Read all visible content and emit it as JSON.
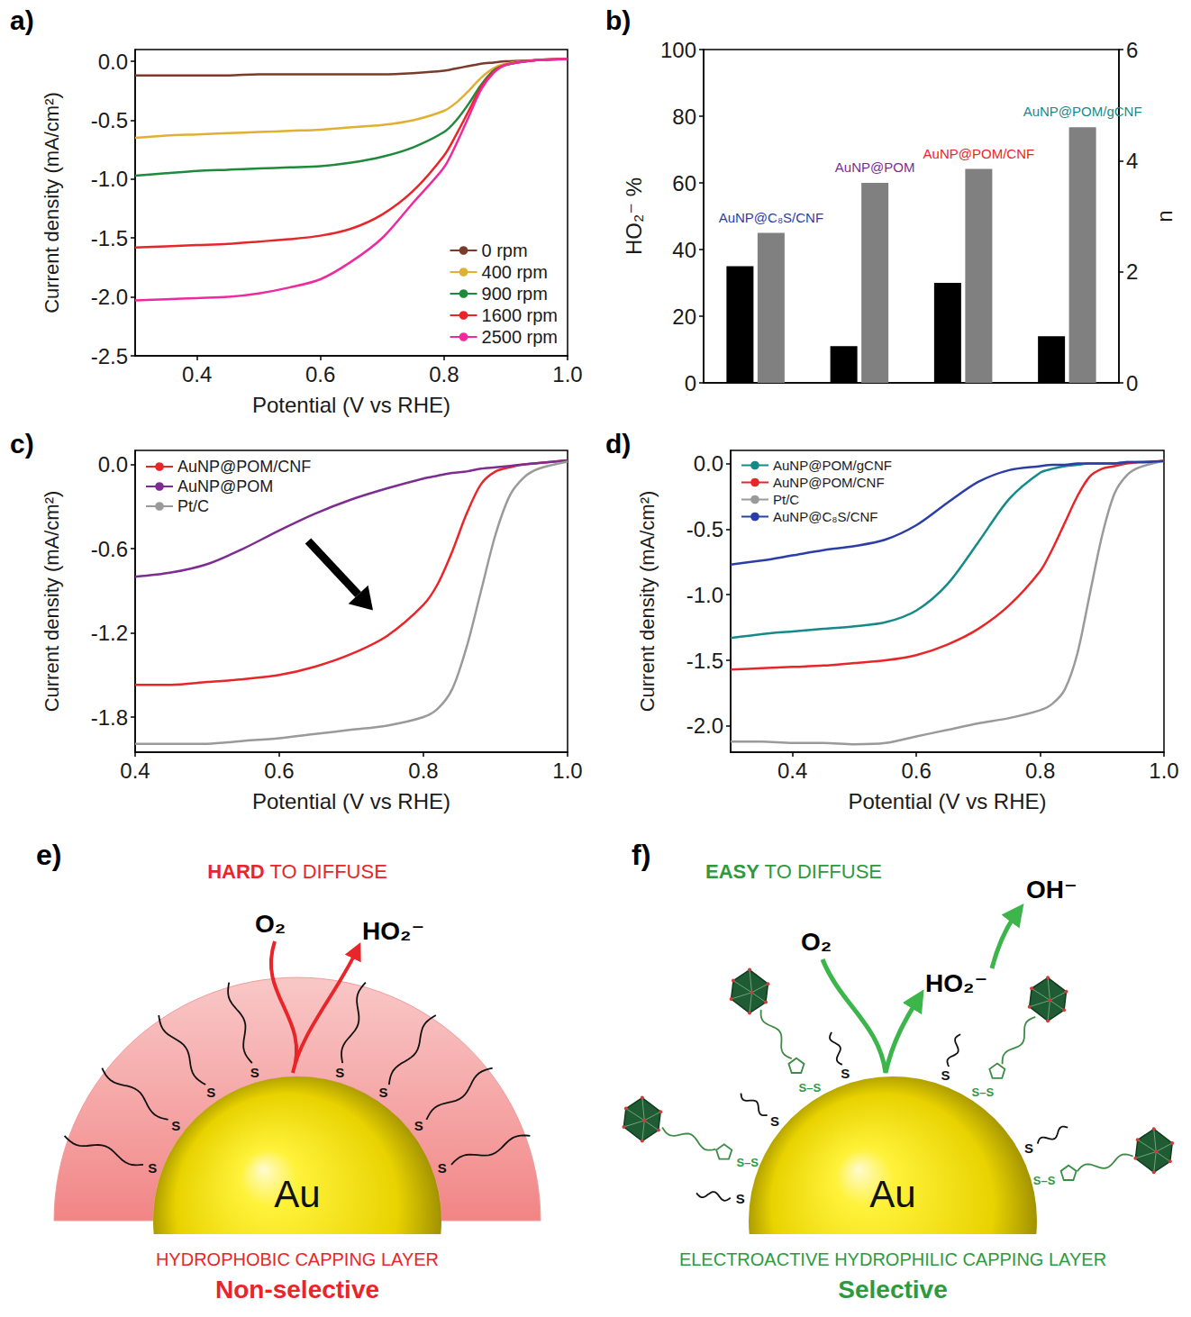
{
  "chart_data": [
    {
      "panel": "a)",
      "type": "line",
      "x_label": "Potential (V vs RHE)",
      "y_label": "Current density (mA/cm²)",
      "xlim": [
        0.3,
        1.0
      ],
      "xticks": [
        0.4,
        0.6,
        0.8,
        {
          "value": 1.0,
          "label": "1.0"
        }
      ],
      "ylim": [
        -2.5,
        0.1
      ],
      "yticks": [
        {
          "value": 0,
          "label": "0.0"
        },
        -0.5,
        {
          "value": -1,
          "label": "-1.0"
        },
        -1.5,
        {
          "value": -2,
          "label": "-2.0"
        },
        -2.5
      ],
      "grid": false,
      "legend": "bottom-right",
      "x": [
        0.3,
        0.35,
        0.4,
        0.45,
        0.5,
        0.55,
        0.6,
        0.65,
        0.7,
        0.75,
        0.8,
        0.82,
        0.84,
        0.86,
        0.88,
        0.9,
        0.95,
        1.0
      ],
      "series": [
        {
          "name": "0 rpm",
          "color": "#7b3b2a",
          "values": [
            -0.12,
            -0.12,
            -0.12,
            -0.12,
            -0.11,
            -0.11,
            -0.11,
            -0.11,
            -0.11,
            -0.1,
            -0.08,
            -0.06,
            -0.04,
            -0.02,
            -0.01,
            0,
            0.01,
            0.02
          ]
        },
        {
          "name": "400 rpm",
          "color": "#e0b030",
          "values": [
            -0.65,
            -0.63,
            -0.62,
            -0.61,
            -0.6,
            -0.59,
            -0.58,
            -0.56,
            -0.54,
            -0.5,
            -0.42,
            -0.35,
            -0.25,
            -0.14,
            -0.06,
            -0.02,
            0.01,
            0.02
          ]
        },
        {
          "name": "900 rpm",
          "color": "#1f8a3c",
          "values": [
            -0.97,
            -0.95,
            -0.93,
            -0.92,
            -0.91,
            -0.9,
            -0.89,
            -0.86,
            -0.81,
            -0.73,
            -0.6,
            -0.5,
            -0.36,
            -0.2,
            -0.08,
            -0.03,
            0.01,
            0.02
          ]
        },
        {
          "name": "1600 rpm",
          "color": "#e8262a",
          "values": [
            -1.58,
            -1.57,
            -1.56,
            -1.55,
            -1.53,
            -1.51,
            -1.48,
            -1.42,
            -1.3,
            -1.1,
            -0.8,
            -0.62,
            -0.42,
            -0.22,
            -0.09,
            -0.03,
            0.01,
            0.02
          ]
        },
        {
          "name": "2500 rpm",
          "color": "#ee2a9c",
          "values": [
            -2.03,
            -2.02,
            -2.01,
            -2.0,
            -1.97,
            -1.92,
            -1.85,
            -1.7,
            -1.5,
            -1.2,
            -0.9,
            -0.7,
            -0.47,
            -0.24,
            -0.1,
            -0.03,
            0.01,
            0.02
          ]
        }
      ]
    },
    {
      "panel": "b)",
      "type": "bar",
      "y_label": "HO₂⁻ %",
      "y2_label": "n",
      "categories": [
        "AuNP@C₈S/CNF",
        "AuNP@POM",
        "AuNP@POM/CNF",
        "AuNP@POM/gCNF"
      ],
      "colors": [
        "#2b3ea8",
        "#7d2d91",
        "#e8262a",
        "#168a8a"
      ],
      "ylim": [
        0,
        100
      ],
      "yticks": [
        0,
        20,
        40,
        60,
        80,
        100
      ],
      "y2lim": [
        0,
        6
      ],
      "y2ticks": [
        0,
        2,
        4,
        6
      ],
      "grid": false,
      "tick_labels": "y",
      "series": [
        {
          "name": "HO₂⁻ %",
          "color": "#000000",
          "values": [
            35,
            11,
            30,
            14
          ]
        },
        {
          "name": "n",
          "color": "#808080",
          "values": [
            2.7,
            3.6,
            3.85,
            4.6
          ],
          "axis": "y2"
        }
      ]
    },
    {
      "panel": "c)",
      "type": "line",
      "x_label": "Potential (V vs RHE)",
      "y_label": "Current density (mA/cm²)",
      "xlim": [
        0.4,
        1.0
      ],
      "xticks": [
        0.4,
        0.6,
        0.8,
        {
          "value": 1.0,
          "label": "1.0"
        }
      ],
      "ylim": [
        -2.05,
        0.1
      ],
      "yticks": [
        {
          "value": 0,
          "label": "0.0"
        },
        -0.6,
        -1.2,
        -1.8
      ],
      "grid": false,
      "legend": "top-left",
      "x": [
        0.4,
        0.45,
        0.5,
        0.55,
        0.6,
        0.65,
        0.7,
        0.75,
        0.8,
        0.82,
        0.84,
        0.86,
        0.88,
        0.9,
        0.92,
        0.94,
        0.96,
        1.0
      ],
      "series": [
        {
          "name": "AuNP@POM/CNF",
          "color": "#e8262a",
          "values": [
            -1.57,
            -1.57,
            -1.55,
            -1.53,
            -1.5,
            -1.44,
            -1.35,
            -1.22,
            -1.0,
            -0.85,
            -0.62,
            -0.35,
            -0.14,
            -0.05,
            -0.02,
            0,
            0.01,
            0.03
          ]
        },
        {
          "name": "AuNP@POM",
          "color": "#7d2d91",
          "values": [
            -0.8,
            -0.77,
            -0.71,
            -0.6,
            -0.47,
            -0.35,
            -0.25,
            -0.17,
            -0.1,
            -0.08,
            -0.06,
            -0.05,
            -0.03,
            -0.02,
            -0.01,
            0,
            0.01,
            0.03
          ]
        },
        {
          "name": "Pt/C",
          "color": "#9a9a9a",
          "values": [
            -1.99,
            -1.99,
            -1.99,
            -1.97,
            -1.95,
            -1.92,
            -1.89,
            -1.86,
            -1.8,
            -1.74,
            -1.6,
            -1.3,
            -0.9,
            -0.5,
            -0.22,
            -0.09,
            -0.03,
            0.02
          ]
        }
      ]
    },
    {
      "panel": "d)",
      "type": "line",
      "x_label": "Potential (V vs RHE)",
      "y_label": "Current density (mA/cm²)",
      "xlim": [
        0.3,
        1.0
      ],
      "xticks": [
        0.4,
        0.6,
        0.8,
        {
          "value": 1.0,
          "label": "1.0"
        }
      ],
      "ylim": [
        -2.2,
        0.1
      ],
      "yticks": [
        {
          "value": 0,
          "label": "0.0"
        },
        -0.5,
        {
          "value": -1,
          "label": "-1.0"
        },
        -1.5,
        {
          "value": -2,
          "label": "-2.0"
        }
      ],
      "grid": false,
      "legend": "top-left",
      "x": [
        0.3,
        0.35,
        0.4,
        0.45,
        0.5,
        0.55,
        0.6,
        0.65,
        0.7,
        0.75,
        0.8,
        0.82,
        0.84,
        0.86,
        0.88,
        0.9,
        0.92,
        0.94,
        0.96,
        1.0
      ],
      "series": [
        {
          "name": "AuNP@POM/gCNF",
          "color": "#168a8a",
          "values": [
            -1.33,
            -1.3,
            -1.28,
            -1.26,
            -1.24,
            -1.21,
            -1.12,
            -0.92,
            -0.6,
            -0.27,
            -0.07,
            -0.04,
            -0.02,
            -0.01,
            0,
            0,
            0,
            0.01,
            0.01,
            0.02
          ]
        },
        {
          "name": "AuNP@POM/CNF",
          "color": "#e8262a",
          "values": [
            -1.57,
            -1.56,
            -1.55,
            -1.54,
            -1.52,
            -1.5,
            -1.46,
            -1.38,
            -1.26,
            -1.08,
            -0.82,
            -0.65,
            -0.45,
            -0.25,
            -0.1,
            -0.04,
            -0.02,
            0,
            0.01,
            0.02
          ]
        },
        {
          "name": "Pt/C",
          "color": "#9a9a9a",
          "values": [
            -2.12,
            -2.12,
            -2.13,
            -2.13,
            -2.14,
            -2.13,
            -2.08,
            -2.03,
            -1.98,
            -1.94,
            -1.88,
            -1.83,
            -1.72,
            -1.45,
            -1.0,
            -0.55,
            -0.23,
            -0.09,
            -0.03,
            0.02
          ]
        },
        {
          "name": "AuNP@C₈S/CNF",
          "color": "#2b3ea8",
          "values": [
            -0.77,
            -0.74,
            -0.7,
            -0.66,
            -0.63,
            -0.58,
            -0.47,
            -0.3,
            -0.14,
            -0.05,
            -0.02,
            -0.01,
            -0.01,
            0,
            0,
            0,
            0,
            0.01,
            0.01,
            0.02
          ]
        }
      ]
    }
  ],
  "diagrams": [
    {
      "panel": "e)",
      "heading_strong": "HARD",
      "heading_rest": " TO DIFFUSE",
      "reactant": "O₂",
      "product": "HO₂⁻",
      "core": "Au",
      "thiol": "S",
      "caption": "HYDROPHOBIC CAPPING LAYER",
      "verdict": "Non-selective"
    },
    {
      "panel": "f)",
      "heading_strong": "EASY",
      "heading_rest": " TO DIFFUSE",
      "reactant": "O₂",
      "product": "HO₂⁻",
      "final_product": "OH⁻",
      "core": "Au",
      "thiol": "S",
      "disulfide": "S–S",
      "caption": "ELECTROACTIVE HYDROPHILIC CAPPING LAYER",
      "verdict": "Selective"
    }
  ]
}
